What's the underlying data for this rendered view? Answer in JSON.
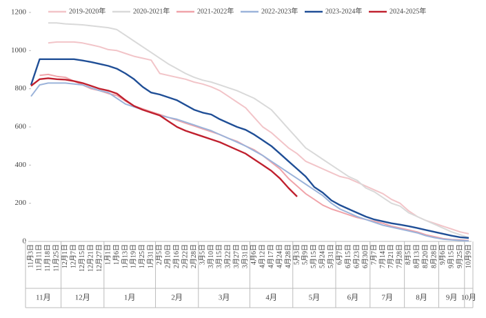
{
  "chart_data": {
    "type": "line",
    "categories": [
      "11月3日",
      "11月11日",
      "11月18日",
      "11月25日",
      "12月1日",
      "12月7日",
      "12月15日",
      "12月21日",
      "12月27日",
      "1月1日",
      "1月6日",
      "1月13日",
      "1月19日",
      "1月25日",
      "1月31日",
      "2月5日",
      "2月10日",
      "2月16日",
      "2月22日",
      "2月28日",
      "3月5日",
      "3月10日",
      "3月15日",
      "3月22日",
      "3月27日",
      "3月31日",
      "4月6日",
      "4月12日",
      "4月17日",
      "4月24日",
      "4月28日",
      "5月3日",
      "5月9日",
      "5月15日",
      "5月24日",
      "5月31日",
      "6月7日",
      "6月15日",
      "6月23日",
      "6月30日",
      "7月7日",
      "7月14日",
      "7月21日",
      "7月28日",
      "8月5日",
      "8月13日",
      "8月20日",
      "8月28日",
      "9月6日",
      "9月15日",
      "9月25日",
      "10月9日"
    ],
    "groups": [
      "11月",
      "12月",
      "1月",
      "2月",
      "3月",
      "4月",
      "5月",
      "6月",
      "7月",
      "8月",
      "9月",
      "10月"
    ],
    "ylim": [
      0,
      1200
    ],
    "yticks": [
      0,
      200,
      400,
      600,
      800,
      1000,
      1200
    ],
    "grid": false,
    "legend": "top",
    "series": [
      {
        "name": "2019-2020年",
        "color": "#f2c4c8",
        "values": [
          null,
          null,
          1040,
          1045,
          1045,
          1045,
          1040,
          1030,
          1020,
          1005,
          1000,
          985,
          970,
          960,
          950,
          880,
          870,
          860,
          850,
          835,
          825,
          810,
          790,
          760,
          730,
          700,
          650,
          600,
          570,
          530,
          490,
          460,
          420,
          400,
          380,
          360,
          340,
          330,
          310,
          290,
          270,
          250,
          220,
          200,
          160,
          130,
          110,
          95,
          80,
          65,
          50,
          40
        ]
      },
      {
        "name": "2020-2021年",
        "color": "#d9d9d9",
        "values": [
          null,
          null,
          1145,
          1145,
          1140,
          1138,
          1135,
          1130,
          1125,
          1120,
          1110,
          1080,
          1050,
          1020,
          990,
          960,
          930,
          905,
          880,
          860,
          845,
          835,
          820,
          805,
          790,
          770,
          750,
          720,
          690,
          640,
          590,
          540,
          490,
          460,
          430,
          400,
          370,
          340,
          320,
          280,
          260,
          230,
          200,
          185,
          150,
          130,
          110,
          90,
          70,
          50,
          35,
          20
        ]
      },
      {
        "name": "2021-2022年",
        "color": "#f0a3a9",
        "values": [
          null,
          870,
          875,
          865,
          860,
          840,
          820,
          800,
          790,
          775,
          765,
          735,
          710,
          695,
          680,
          665,
          650,
          635,
          620,
          605,
          590,
          575,
          560,
          540,
          525,
          500,
          480,
          450,
          415,
          380,
          330,
          290,
          250,
          220,
          190,
          170,
          155,
          140,
          125,
          115,
          105,
          95,
          80,
          70,
          60,
          50,
          35,
          25,
          15,
          10,
          8,
          5
        ]
      },
      {
        "name": "2022-2023年",
        "color": "#9bb3da",
        "values": [
          760,
          820,
          830,
          830,
          830,
          825,
          820,
          805,
          790,
          780,
          750,
          720,
          705,
          690,
          675,
          660,
          650,
          640,
          625,
          610,
          595,
          580,
          560,
          540,
          520,
          500,
          475,
          450,
          420,
          390,
          360,
          330,
          300,
          270,
          240,
          200,
          170,
          150,
          130,
          115,
          100,
          85,
          75,
          65,
          55,
          45,
          30,
          20,
          12,
          8,
          5,
          3
        ]
      },
      {
        "name": "2023-2024年",
        "color": "#1f4e96",
        "values": [
          820,
          955,
          955,
          955,
          955,
          955,
          948,
          940,
          930,
          920,
          905,
          880,
          850,
          810,
          780,
          770,
          755,
          740,
          715,
          690,
          675,
          665,
          640,
          620,
          600,
          585,
          560,
          530,
          500,
          460,
          420,
          380,
          340,
          285,
          255,
          215,
          190,
          170,
          150,
          130,
          115,
          105,
          95,
          88,
          80,
          70,
          60,
          50,
          40,
          30,
          22,
          18
        ]
      },
      {
        "name": "2024-2025年",
        "color": "#c0202e",
        "values": [
          815,
          850,
          855,
          850,
          848,
          840,
          830,
          815,
          800,
          790,
          775,
          740,
          710,
          690,
          675,
          660,
          630,
          600,
          580,
          565,
          550,
          535,
          520,
          500,
          480,
          460,
          430,
          400,
          370,
          330,
          280,
          235,
          null,
          null,
          null,
          null,
          null,
          null,
          null,
          null,
          null,
          null,
          null,
          null,
          null,
          null,
          null,
          null,
          null,
          null,
          null,
          null
        ]
      }
    ]
  }
}
